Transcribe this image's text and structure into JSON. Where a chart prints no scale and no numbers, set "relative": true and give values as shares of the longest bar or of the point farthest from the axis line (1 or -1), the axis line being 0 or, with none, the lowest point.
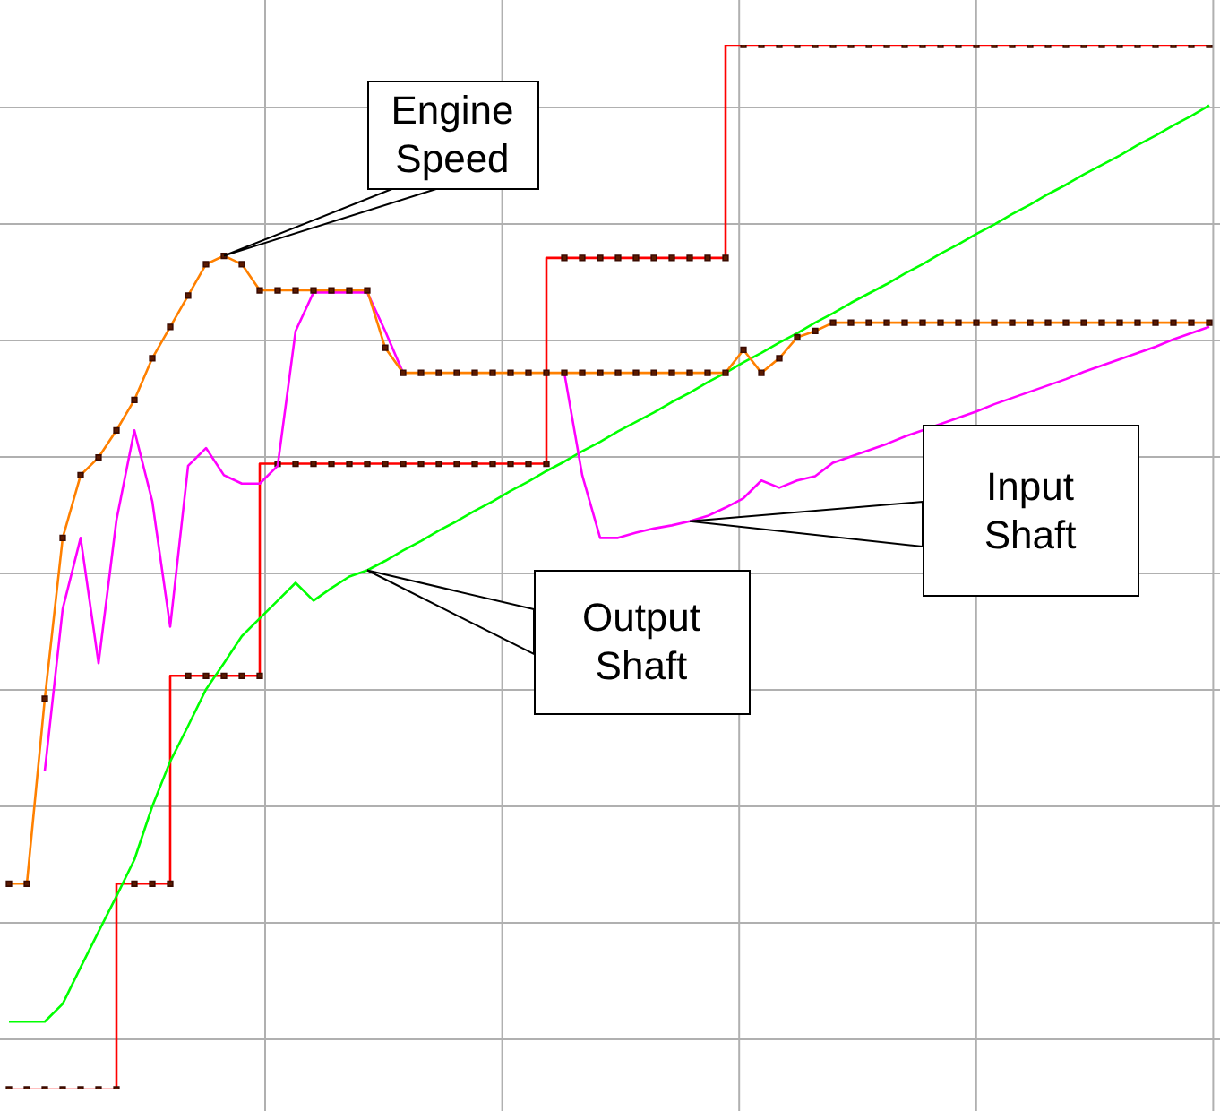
{
  "chart_data": {
    "type": "line",
    "relative": true,
    "grid": true,
    "legend": false,
    "tick_labels": false,
    "categories": [
      null,
      null,
      null,
      null,
      null,
      null,
      null,
      null,
      null,
      null,
      null,
      null,
      null,
      null,
      null,
      null,
      null,
      null,
      null,
      null,
      null,
      null,
      null,
      null,
      null,
      null,
      null,
      null,
      null,
      null,
      null,
      null,
      null,
      null,
      null,
      null,
      null,
      null,
      null,
      null,
      null,
      null,
      null,
      null,
      null,
      null,
      null,
      null,
      null,
      null,
      null,
      null,
      null,
      null,
      null,
      null,
      null,
      null,
      null,
      null,
      null,
      null,
      null,
      null,
      null,
      null,
      null,
      null
    ],
    "series": [
      {
        "name": "Engine Speed",
        "color": "#ff8000",
        "marker": "square",
        "values": [
          0.197,
          0.197,
          0.374,
          0.528,
          0.588,
          0.605,
          0.631,
          0.66,
          0.7,
          0.73,
          0.76,
          0.79,
          0.798,
          0.79,
          0.765,
          0.765,
          0.765,
          0.765,
          0.765,
          0.765,
          0.765,
          0.71,
          0.686,
          0.686,
          0.686,
          0.686,
          0.686,
          0.686,
          0.686,
          0.686,
          0.686,
          0.686,
          0.686,
          0.686,
          0.686,
          0.686,
          0.686,
          0.686,
          0.686,
          0.686,
          0.686,
          0.708,
          0.686,
          0.7,
          0.72,
          0.726,
          0.734,
          0.734,
          0.734,
          0.734,
          0.734,
          0.734,
          0.734,
          0.734,
          0.734,
          0.734,
          0.734,
          0.734,
          0.734,
          0.734,
          0.734,
          0.734,
          0.734,
          0.734,
          0.734,
          0.734,
          0.734,
          0.734
        ]
      },
      {
        "name": "Input Shaft",
        "color": "#ff00ff",
        "marker": "none",
        "values": [
          null,
          null,
          0.305,
          0.46,
          0.528,
          0.408,
          0.545,
          0.631,
          0.563,
          0.443,
          0.597,
          0.614,
          0.588,
          0.58,
          0.58,
          0.597,
          0.726,
          0.763,
          0.763,
          0.763,
          0.763,
          0.726,
          0.686,
          null,
          null,
          null,
          null,
          null,
          null,
          null,
          null,
          0.686,
          0.588,
          0.528,
          0.528,
          0.533,
          0.537,
          0.54,
          0.544,
          0.549,
          0.557,
          0.566,
          0.583,
          0.576,
          0.583,
          0.587,
          0.6,
          0.606,
          0.612,
          0.618,
          0.625,
          0.631,
          0.637,
          0.643,
          0.649,
          0.656,
          0.662,
          0.668,
          0.674,
          0.68,
          0.687,
          0.693,
          0.699,
          0.705,
          0.711,
          0.718,
          0.724,
          0.73
        ]
      },
      {
        "name": "Output Shaft",
        "color": "#00ff00",
        "marker": "none",
        "values": [
          0.065,
          0.065,
          0.065,
          0.082,
          0.117,
          0.151,
          0.185,
          0.22,
          0.271,
          0.314,
          0.348,
          0.383,
          0.408,
          0.434,
          0.451,
          0.468,
          0.485,
          0.468,
          0.48,
          0.491,
          0.497,
          0.506,
          0.516,
          0.525,
          0.535,
          0.544,
          0.554,
          0.563,
          0.573,
          0.582,
          0.592,
          0.601,
          0.611,
          0.62,
          0.63,
          0.639,
          0.648,
          0.658,
          0.667,
          0.677,
          0.686,
          0.696,
          0.705,
          0.715,
          0.724,
          0.734,
          0.743,
          0.753,
          0.762,
          0.771,
          0.781,
          0.79,
          0.8,
          0.809,
          0.819,
          0.828,
          0.838,
          0.847,
          0.857,
          0.866,
          0.876,
          0.885,
          0.894,
          0.904,
          0.913,
          0.923,
          0.932,
          0.942
        ]
      },
      {
        "type": "step",
        "color": "#ff0000",
        "marker": "square",
        "values": [
          0,
          0,
          0,
          0,
          0,
          0,
          0,
          0.197,
          0.197,
          0.197,
          0.396,
          0.396,
          0.396,
          0.396,
          0.396,
          0.599,
          0.599,
          0.599,
          0.599,
          0.599,
          0.599,
          0.599,
          0.599,
          0.599,
          0.599,
          0.599,
          0.599,
          0.599,
          0.599,
          0.599,
          0.599,
          0.796,
          0.796,
          0.796,
          0.796,
          0.796,
          0.796,
          0.796,
          0.796,
          0.796,
          0.796,
          1,
          1,
          1,
          1,
          1,
          1,
          1,
          1,
          1,
          1,
          1,
          1,
          1,
          1,
          1,
          1,
          1,
          1,
          1,
          1,
          1,
          1,
          1,
          1,
          1,
          1,
          1
        ]
      }
    ]
  }
}
